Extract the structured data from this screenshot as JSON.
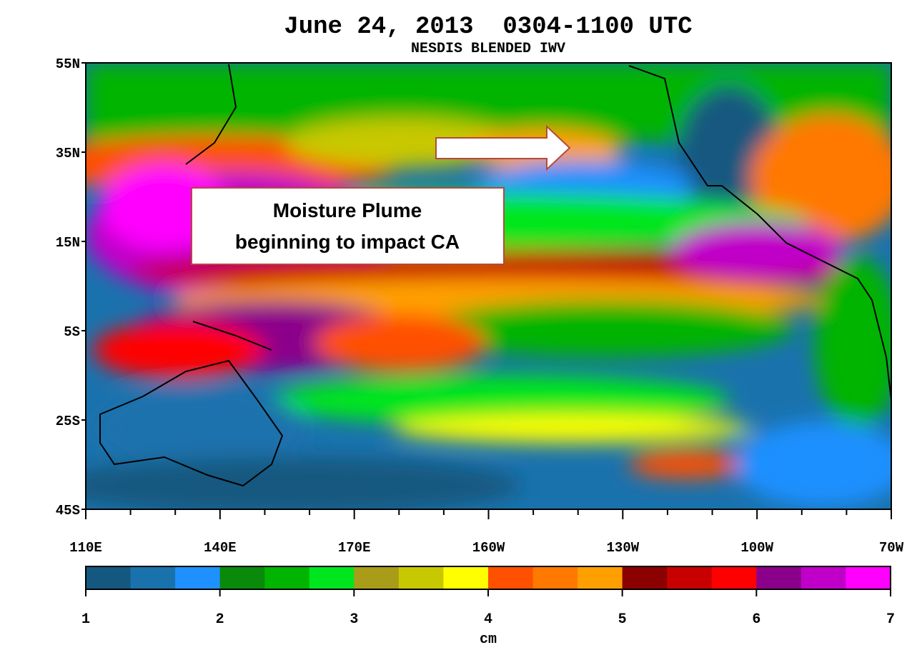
{
  "header": {
    "title": "June 24, 2013  0304-1100 UTC",
    "subtitle": "NESDIS BLENDED IWV"
  },
  "map": {
    "lat_labels": [
      "55N",
      "35N",
      "15N",
      "5S",
      "25S",
      "45S"
    ],
    "lon_labels": [
      "110E",
      "140E",
      "170E",
      "160W",
      "130W",
      "100W",
      "70W"
    ],
    "annotation": [
      "Moisture Plume",
      "beginning to impact CA"
    ]
  },
  "colorbar": {
    "colors": [
      "#14587f",
      "#1a72ad",
      "#1e90ff",
      "#0a8a0a",
      "#00b400",
      "#00e61e",
      "#a89c18",
      "#c8c800",
      "#ffff00",
      "#ff5000",
      "#ff7800",
      "#ffa000",
      "#8b0000",
      "#c80000",
      "#ff0000",
      "#8b008b",
      "#c000c8",
      "#ff00ff"
    ],
    "ticks": [
      1,
      2,
      3,
      4,
      5,
      6,
      7
    ],
    "label": "cm"
  }
}
